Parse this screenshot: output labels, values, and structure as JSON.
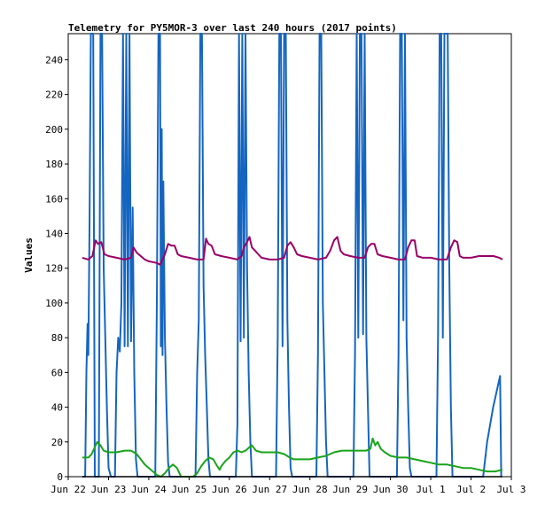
{
  "chart_data": {
    "type": "line",
    "title": "Telemetry for PY5MOR-3 over last 240 hours (2017 points)",
    "xlabel": "",
    "ylabel": "Values",
    "ylim": [
      0,
      255
    ],
    "xlim": [
      0,
      11
    ],
    "x_tick_labels": [
      "Jun 22",
      "Jun 23",
      "Jun 24",
      "Jun 25",
      "Jun 26",
      "Jun 27",
      "Jun 28",
      "Jun 29",
      "Jun 30",
      "Jul 1",
      "Jul 2",
      "Jul 3"
    ],
    "y_ticks": [
      0,
      20,
      40,
      60,
      80,
      100,
      120,
      140,
      160,
      180,
      200,
      220,
      240
    ],
    "grid": false,
    "legend": "none",
    "series": [
      {
        "color": "#1565c0",
        "points": [
          [
            0.35,
            0
          ],
          [
            0.42,
            0
          ],
          [
            0.45,
            60
          ],
          [
            0.48,
            88
          ],
          [
            0.5,
            70
          ],
          [
            0.53,
            150
          ],
          [
            0.56,
            255
          ],
          [
            0.62,
            255
          ],
          [
            0.66,
            0
          ],
          [
            0.72,
            0
          ],
          [
            0.76,
            0
          ],
          [
            0.8,
            255
          ],
          [
            0.84,
            255
          ],
          [
            0.88,
            120
          ],
          [
            0.92,
            80
          ],
          [
            0.96,
            40
          ],
          [
            1.0,
            5
          ],
          [
            1.06,
            0
          ],
          [
            1.1,
            0
          ],
          [
            1.16,
            0
          ],
          [
            1.2,
            60
          ],
          [
            1.24,
            80
          ],
          [
            1.28,
            72
          ],
          [
            1.32,
            100
          ],
          [
            1.36,
            255
          ],
          [
            1.4,
            75
          ],
          [
            1.44,
            255
          ],
          [
            1.48,
            75
          ],
          [
            1.52,
            255
          ],
          [
            1.56,
            78
          ],
          [
            1.6,
            155
          ],
          [
            1.64,
            60
          ],
          [
            1.68,
            10
          ],
          [
            1.72,
            0
          ],
          [
            2.0,
            0
          ],
          [
            2.1,
            0
          ],
          [
            2.16,
            0
          ],
          [
            2.2,
            100
          ],
          [
            2.24,
            255
          ],
          [
            2.28,
            255
          ],
          [
            2.3,
            75
          ],
          [
            2.32,
            200
          ],
          [
            2.34,
            70
          ],
          [
            2.36,
            170
          ],
          [
            2.4,
            80
          ],
          [
            2.44,
            40
          ],
          [
            2.48,
            8
          ],
          [
            2.52,
            0
          ],
          [
            2.56,
            0
          ],
          [
            3.1,
            0
          ],
          [
            3.16,
            0
          ],
          [
            3.2,
            60
          ],
          [
            3.24,
            90
          ],
          [
            3.28,
            255
          ],
          [
            3.32,
            255
          ],
          [
            3.36,
            110
          ],
          [
            3.4,
            70
          ],
          [
            3.44,
            40
          ],
          [
            3.48,
            10
          ],
          [
            3.52,
            0
          ],
          [
            4.1,
            0
          ],
          [
            4.16,
            0
          ],
          [
            4.2,
            30
          ],
          [
            4.24,
            255
          ],
          [
            4.28,
            78
          ],
          [
            4.32,
            255
          ],
          [
            4.36,
            80
          ],
          [
            4.4,
            255
          ],
          [
            4.44,
            120
          ],
          [
            4.48,
            60
          ],
          [
            4.52,
            20
          ],
          [
            4.56,
            0
          ],
          [
            5.1,
            0
          ],
          [
            5.16,
            0
          ],
          [
            5.2,
            80
          ],
          [
            5.24,
            255
          ],
          [
            5.28,
            255
          ],
          [
            5.32,
            75
          ],
          [
            5.36,
            255
          ],
          [
            5.4,
            255
          ],
          [
            5.44,
            90
          ],
          [
            5.48,
            40
          ],
          [
            5.52,
            5
          ],
          [
            5.56,
            0
          ],
          [
            6.1,
            0
          ],
          [
            6.16,
            0
          ],
          [
            6.2,
            70
          ],
          [
            6.24,
            255
          ],
          [
            6.28,
            255
          ],
          [
            6.32,
            100
          ],
          [
            6.36,
            60
          ],
          [
            6.4,
            20
          ],
          [
            6.44,
            0
          ],
          [
            7.0,
            0
          ],
          [
            7.08,
            0
          ],
          [
            7.12,
            70
          ],
          [
            7.16,
            255
          ],
          [
            7.2,
            80
          ],
          [
            7.24,
            255
          ],
          [
            7.28,
            255
          ],
          [
            7.32,
            82
          ],
          [
            7.36,
            255
          ],
          [
            7.4,
            80
          ],
          [
            7.44,
            40
          ],
          [
            7.48,
            0
          ],
          [
            8.1,
            0
          ],
          [
            8.16,
            0
          ],
          [
            8.2,
            70
          ],
          [
            8.24,
            255
          ],
          [
            8.28,
            255
          ],
          [
            8.32,
            90
          ],
          [
            8.36,
            255
          ],
          [
            8.4,
            80
          ],
          [
            8.44,
            40
          ],
          [
            8.48,
            5
          ],
          [
            8.52,
            0
          ],
          [
            8.56,
            0
          ],
          [
            9.1,
            0
          ],
          [
            9.14,
            0
          ],
          [
            9.18,
            80
          ],
          [
            9.22,
            255
          ],
          [
            9.26,
            255
          ],
          [
            9.3,
            80
          ],
          [
            9.34,
            255
          ],
          [
            9.38,
            255
          ],
          [
            9.42,
            255
          ],
          [
            9.46,
            120
          ],
          [
            9.5,
            40
          ],
          [
            9.54,
            0
          ],
          [
            9.58,
            0
          ],
          [
            10.0,
            0
          ],
          [
            10.05,
            0
          ],
          [
            10.1,
            0
          ],
          [
            10.15,
            0
          ],
          [
            10.2,
            0
          ],
          [
            10.25,
            0
          ],
          [
            10.3,
            0
          ],
          [
            10.4,
            20
          ],
          [
            10.55,
            40
          ],
          [
            10.72,
            58
          ],
          [
            10.75,
            0
          ]
        ]
      },
      {
        "color": "#990066",
        "points": [
          [
            0.35,
            126
          ],
          [
            0.5,
            125
          ],
          [
            0.6,
            127
          ],
          [
            0.68,
            136
          ],
          [
            0.74,
            134
          ],
          [
            0.82,
            135
          ],
          [
            0.9,
            128
          ],
          [
            1.0,
            127
          ],
          [
            1.2,
            126
          ],
          [
            1.4,
            125
          ],
          [
            1.56,
            126
          ],
          [
            1.62,
            132
          ],
          [
            1.7,
            129
          ],
          [
            1.8,
            127
          ],
          [
            1.9,
            125
          ],
          [
            2.0,
            124
          ],
          [
            2.2,
            123
          ],
          [
            2.28,
            122
          ],
          [
            2.4,
            128
          ],
          [
            2.48,
            134
          ],
          [
            2.56,
            133
          ],
          [
            2.64,
            133
          ],
          [
            2.72,
            128
          ],
          [
            2.8,
            127
          ],
          [
            3.0,
            126
          ],
          [
            3.2,
            125
          ],
          [
            3.36,
            125
          ],
          [
            3.42,
            137
          ],
          [
            3.48,
            134
          ],
          [
            3.56,
            133
          ],
          [
            3.64,
            128
          ],
          [
            3.8,
            127
          ],
          [
            4.0,
            126
          ],
          [
            4.2,
            125
          ],
          [
            4.3,
            127
          ],
          [
            4.36,
            132
          ],
          [
            4.44,
            135
          ],
          [
            4.5,
            138
          ],
          [
            4.56,
            132
          ],
          [
            4.64,
            130
          ],
          [
            4.72,
            128
          ],
          [
            4.8,
            126
          ],
          [
            5.0,
            125
          ],
          [
            5.2,
            125
          ],
          [
            5.36,
            126
          ],
          [
            5.44,
            133
          ],
          [
            5.52,
            135
          ],
          [
            5.6,
            132
          ],
          [
            5.68,
            128
          ],
          [
            5.8,
            127
          ],
          [
            6.0,
            126
          ],
          [
            6.2,
            125
          ],
          [
            6.4,
            126
          ],
          [
            6.5,
            130
          ],
          [
            6.6,
            136
          ],
          [
            6.68,
            138
          ],
          [
            6.76,
            130
          ],
          [
            6.84,
            128
          ],
          [
            7.0,
            127
          ],
          [
            7.2,
            126
          ],
          [
            7.36,
            126
          ],
          [
            7.44,
            132
          ],
          [
            7.52,
            134
          ],
          [
            7.6,
            134
          ],
          [
            7.68,
            128
          ],
          [
            7.8,
            127
          ],
          [
            8.0,
            126
          ],
          [
            8.2,
            125
          ],
          [
            8.36,
            125
          ],
          [
            8.44,
            132
          ],
          [
            8.52,
            136
          ],
          [
            8.6,
            136
          ],
          [
            8.66,
            127
          ],
          [
            8.8,
            126
          ],
          [
            9.0,
            126
          ],
          [
            9.2,
            125
          ],
          [
            9.4,
            125
          ],
          [
            9.5,
            132
          ],
          [
            9.58,
            136
          ],
          [
            9.66,
            135
          ],
          [
            9.72,
            127
          ],
          [
            9.8,
            126
          ],
          [
            10.0,
            126
          ],
          [
            10.2,
            127
          ],
          [
            10.4,
            127
          ],
          [
            10.56,
            127
          ],
          [
            10.7,
            126
          ],
          [
            10.78,
            125
          ]
        ]
      },
      {
        "color": "#1aa31a",
        "points": [
          [
            0.35,
            11
          ],
          [
            0.5,
            11
          ],
          [
            0.58,
            13
          ],
          [
            0.66,
            17
          ],
          [
            0.72,
            20
          ],
          [
            0.8,
            18
          ],
          [
            0.88,
            15
          ],
          [
            1.0,
            14
          ],
          [
            1.2,
            14
          ],
          [
            1.4,
            15
          ],
          [
            1.56,
            15
          ],
          [
            1.7,
            13
          ],
          [
            1.8,
            10
          ],
          [
            1.9,
            7
          ],
          [
            2.0,
            5
          ],
          [
            2.1,
            3
          ],
          [
            2.2,
            1
          ],
          [
            2.3,
            0
          ],
          [
            2.4,
            2
          ],
          [
            2.5,
            5
          ],
          [
            2.6,
            7
          ],
          [
            2.7,
            5
          ],
          [
            2.76,
            2
          ],
          [
            2.8,
            0
          ],
          [
            3.1,
            0
          ],
          [
            3.2,
            2
          ],
          [
            3.3,
            6
          ],
          [
            3.4,
            9
          ],
          [
            3.5,
            11
          ],
          [
            3.6,
            10
          ],
          [
            3.7,
            6
          ],
          [
            3.76,
            4
          ],
          [
            3.8,
            6
          ],
          [
            3.9,
            9
          ],
          [
            4.0,
            11
          ],
          [
            4.1,
            14
          ],
          [
            4.2,
            15
          ],
          [
            4.3,
            14
          ],
          [
            4.4,
            15
          ],
          [
            4.5,
            17
          ],
          [
            4.56,
            18
          ],
          [
            4.66,
            15
          ],
          [
            4.8,
            14
          ],
          [
            5.0,
            14
          ],
          [
            5.2,
            14
          ],
          [
            5.36,
            13
          ],
          [
            5.5,
            11
          ],
          [
            5.6,
            10
          ],
          [
            5.8,
            10
          ],
          [
            6.0,
            10
          ],
          [
            6.2,
            11
          ],
          [
            6.4,
            12
          ],
          [
            6.6,
            14
          ],
          [
            6.8,
            15
          ],
          [
            7.0,
            15
          ],
          [
            7.2,
            15
          ],
          [
            7.4,
            15
          ],
          [
            7.5,
            16
          ],
          [
            7.56,
            22
          ],
          [
            7.62,
            18
          ],
          [
            7.68,
            20
          ],
          [
            7.76,
            16
          ],
          [
            7.86,
            14
          ],
          [
            8.0,
            12
          ],
          [
            8.2,
            11
          ],
          [
            8.4,
            11
          ],
          [
            8.6,
            10
          ],
          [
            8.8,
            9
          ],
          [
            9.0,
            8
          ],
          [
            9.2,
            7
          ],
          [
            9.4,
            7
          ],
          [
            9.6,
            6
          ],
          [
            9.8,
            5
          ],
          [
            10.0,
            5
          ],
          [
            10.2,
            4
          ],
          [
            10.4,
            3
          ],
          [
            10.6,
            3
          ],
          [
            10.78,
            4
          ]
        ]
      },
      {
        "color": "#000000",
        "points": [
          [
            0.35,
            0
          ],
          [
            10.78,
            0
          ]
        ]
      }
    ]
  }
}
